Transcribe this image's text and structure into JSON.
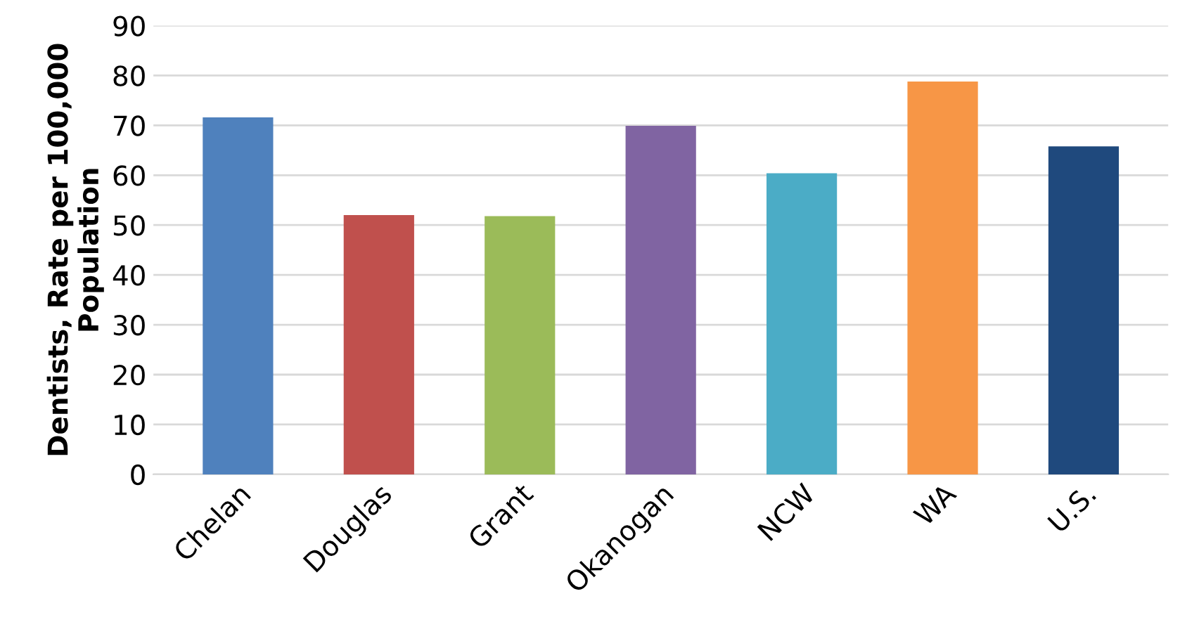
{
  "chart_data": {
    "type": "bar",
    "ylabel": "Dentists, Rate per 100,000\nPopulation",
    "categories": [
      "Chelan",
      "Douglas",
      "Grant",
      "Okanogan",
      "NCW",
      "WA",
      "U.S."
    ],
    "values": [
      71.6,
      52.0,
      51.8,
      69.9,
      60.4,
      78.8,
      65.8
    ],
    "colors": [
      "#4f81bd",
      "#c0504d",
      "#9bbb59",
      "#8064a2",
      "#4bacc6",
      "#f79646",
      "#1f497d"
    ],
    "ylim": [
      0,
      90
    ],
    "yticks": [
      0,
      10,
      20,
      30,
      40,
      50,
      60,
      70,
      80,
      90
    ],
    "grid": "y"
  }
}
